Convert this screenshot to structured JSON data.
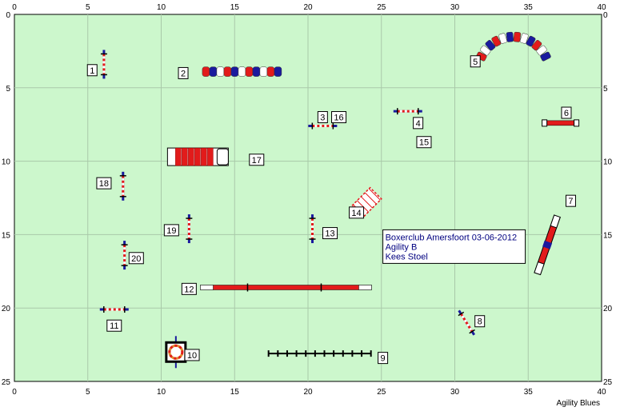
{
  "field": {
    "x_range": [
      0,
      40
    ],
    "y_range": [
      0,
      25
    ],
    "x_ticks": [
      0,
      5,
      10,
      15,
      20,
      25,
      30,
      35,
      40
    ],
    "y_ticks": [
      0,
      5,
      10,
      15,
      20,
      25
    ],
    "background": "#ccf7cc",
    "grid_color": "#a9c9a9"
  },
  "info_box": {
    "line1": "Boxerclub Amersfoort 03-06-2012",
    "line2": "Agility B",
    "line3": "Kees Stoel"
  },
  "footer": "Agility Blues",
  "colors": {
    "red": "#e21b1b",
    "blue": "#1a1a9e",
    "white": "#ffffff"
  },
  "obstacles": [
    {
      "num": "1",
      "type": "hurdle",
      "x": 6.1,
      "y": 3.4,
      "angle": 90,
      "label_x": 5.3,
      "label_y": 3.8
    },
    {
      "num": "2",
      "type": "tunnel",
      "x": 15.5,
      "y": 3.9,
      "angle": 0,
      "label_x": 11.5,
      "label_y": 4.0
    },
    {
      "num": "3",
      "type": "hurdle",
      "x": 21.0,
      "y": 7.6,
      "angle": 0,
      "label_x": 21.0,
      "label_y": 7.0
    },
    {
      "num": "4",
      "type": "hurdle",
      "x": 26.8,
      "y": 6.6,
      "angle": 0,
      "label_x": 27.5,
      "label_y": 7.4
    },
    {
      "num": "5",
      "type": "curved-tunnel",
      "x": 34.0,
      "y": 1.8,
      "angle": 0,
      "label_x": 31.4,
      "label_y": 3.2
    },
    {
      "num": "6",
      "type": "long-jump-small",
      "x": 37.2,
      "y": 7.4,
      "angle": 0,
      "label_x": 37.6,
      "label_y": 6.7
    },
    {
      "num": "7",
      "type": "seesaw",
      "x": 36.3,
      "y": 15.7,
      "angle": -71,
      "label_x": 37.9,
      "label_y": 12.7
    },
    {
      "num": "8",
      "type": "hurdle",
      "x": 30.8,
      "y": 21.0,
      "angle": 58,
      "label_x": 31.7,
      "label_y": 20.9
    },
    {
      "num": "9",
      "type": "weave",
      "x": 20.8,
      "y": 23.1,
      "angle": 0,
      "label_x": 25.1,
      "label_y": 23.4
    },
    {
      "num": "10",
      "type": "tyre",
      "x": 11.0,
      "y": 23.0,
      "angle": 0,
      "label_x": 12.1,
      "label_y": 23.2
    },
    {
      "num": "11",
      "type": "hurdle",
      "x": 6.8,
      "y": 20.1,
      "angle": 0,
      "label_x": 6.8,
      "label_y": 21.2
    },
    {
      "num": "12",
      "type": "dog-walk",
      "x": 18.5,
      "y": 18.6,
      "angle": 0,
      "label_x": 11.9,
      "label_y": 18.7
    },
    {
      "num": "13",
      "type": "hurdle",
      "x": 20.3,
      "y": 14.6,
      "angle": 90,
      "label_x": 21.5,
      "label_y": 14.9
    },
    {
      "num": "14",
      "type": "tire-frame",
      "x": 24.0,
      "y": 12.8,
      "angle": -45,
      "label_x": 23.3,
      "label_y": 13.5
    },
    {
      "num": "15",
      "type": "label-only",
      "x": 27.9,
      "y": 8.7,
      "angle": 0,
      "label_x": 27.9,
      "label_y": 8.7
    },
    {
      "num": "16",
      "type": "label-only",
      "x": 22.1,
      "y": 7.0,
      "angle": 0,
      "label_x": 22.1,
      "label_y": 7.0
    },
    {
      "num": "17",
      "type": "chute",
      "x": 12.5,
      "y": 9.7,
      "angle": 0,
      "label_x": 16.5,
      "label_y": 9.9
    },
    {
      "num": "18",
      "type": "hurdle",
      "x": 7.4,
      "y": 11.7,
      "angle": 90,
      "label_x": 6.1,
      "label_y": 11.5
    },
    {
      "num": "19",
      "type": "hurdle",
      "x": 11.9,
      "y": 14.6,
      "angle": 90,
      "label_x": 10.7,
      "label_y": 14.7
    },
    {
      "num": "20",
      "type": "hurdle",
      "x": 7.5,
      "y": 16.4,
      "angle": 90,
      "label_x": 8.3,
      "label_y": 16.6
    }
  ]
}
